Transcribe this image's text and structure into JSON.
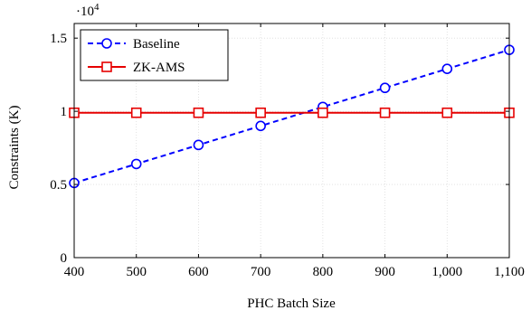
{
  "chart_data": {
    "type": "line",
    "xlabel": "PHC Batch Size",
    "ylabel": "Constraints (K)",
    "x_ticks": [
      "400",
      "500",
      "600",
      "700",
      "800",
      "900",
      "1,000",
      "1,100"
    ],
    "y_ticks": [
      "0",
      "0.5",
      "1",
      "1.5"
    ],
    "y_exponent_base": "·10",
    "y_exponent_power": "4",
    "xlim": [
      400,
      1100
    ],
    "ylim": [
      0,
      16000
    ],
    "grid": true,
    "legend_position": "top-left",
    "x": [
      400,
      500,
      600,
      700,
      800,
      900,
      1000,
      1100
    ],
    "series": [
      {
        "name": "Baseline",
        "color": "#0000ff",
        "marker": "circle",
        "line_style": "dashed",
        "values": [
          5100,
          6400,
          7700,
          9000,
          10300,
          11600,
          12900,
          14200
        ]
      },
      {
        "name": "ZK-AMS",
        "color": "#e60000",
        "marker": "square",
        "line_style": "solid",
        "values": [
          9900,
          9900,
          9900,
          9900,
          9900,
          9900,
          9900,
          9900
        ]
      }
    ]
  }
}
